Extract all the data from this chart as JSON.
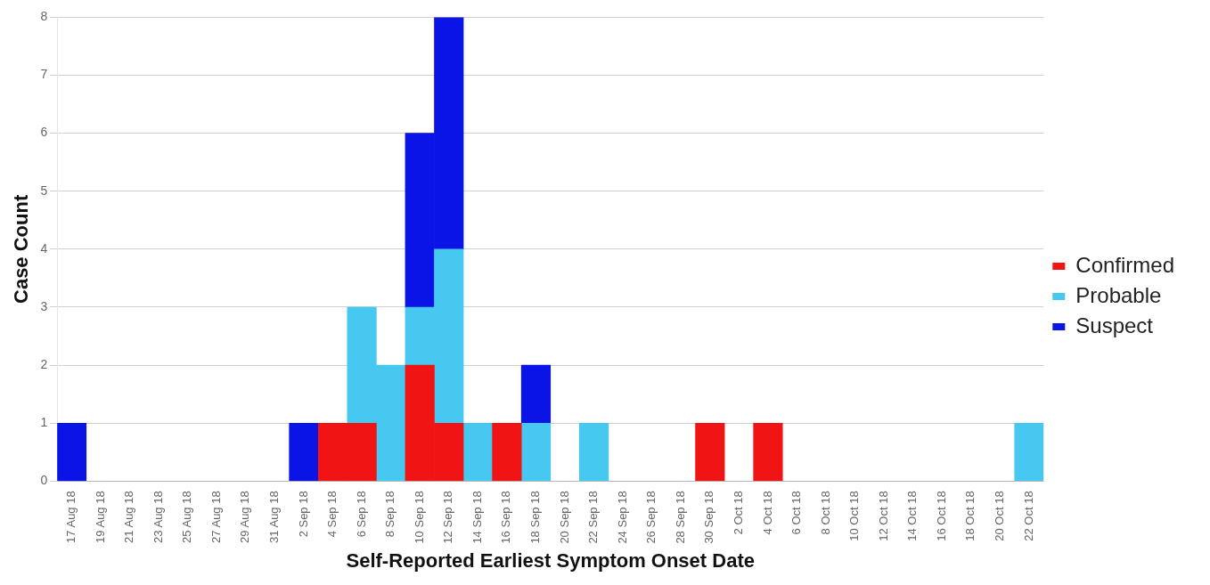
{
  "chart_data": {
    "type": "bar",
    "stacked": true,
    "xlabel": "Self-Reported Earliest Symptom Onset Date",
    "ylabel": "Case Count",
    "categories": [
      "17 Aug 18",
      "19 Aug 18",
      "21 Aug 18",
      "23 Aug 18",
      "25 Aug 18",
      "27 Aug 18",
      "29 Aug 18",
      "31 Aug 18",
      "2 Sep 18",
      "4 Sep 18",
      "6 Sep 18",
      "8 Sep 18",
      "10 Sep 18",
      "12 Sep 18",
      "14 Sep 18",
      "16 Sep 18",
      "18 Sep 18",
      "20 Sep 18",
      "22 Sep 18",
      "24 Sep 18",
      "26 Sep 18",
      "28 Sep 18",
      "30 Sep 18",
      "2 Oct 18",
      "4 Oct 18",
      "6 Oct 18",
      "8 Oct 18",
      "10 Oct 18",
      "12 Oct 18",
      "14 Oct 18",
      "16 Oct 18",
      "18 Oct 18",
      "20 Oct 18",
      "22 Oct 18"
    ],
    "series": [
      {
        "name": "Confirmed",
        "color": "#f01414",
        "values": [
          null,
          null,
          null,
          null,
          null,
          null,
          null,
          null,
          null,
          1,
          1,
          null,
          2,
          1,
          null,
          1,
          null,
          null,
          null,
          null,
          null,
          null,
          1,
          null,
          1,
          null,
          null,
          null,
          null,
          null,
          null,
          null,
          null,
          null
        ]
      },
      {
        "name": "Probable",
        "color": "#46c8f0",
        "values": [
          null,
          null,
          null,
          null,
          null,
          null,
          null,
          null,
          null,
          null,
          2,
          2,
          1,
          3,
          1,
          null,
          1,
          null,
          1,
          null,
          null,
          null,
          null,
          null,
          null,
          null,
          null,
          null,
          null,
          null,
          null,
          null,
          null,
          1
        ]
      },
      {
        "name": "Suspect",
        "color": "#0a14e6",
        "values": [
          1,
          null,
          null,
          null,
          null,
          null,
          null,
          null,
          1,
          null,
          null,
          null,
          3,
          4,
          null,
          null,
          1,
          null,
          null,
          null,
          null,
          null,
          null,
          null,
          null,
          null,
          null,
          null,
          null,
          null,
          null,
          null,
          null,
          null
        ]
      }
    ],
    "ylim": [
      0,
      8
    ],
    "yticks": [
      0,
      1,
      2,
      3,
      4,
      5,
      6,
      7,
      8
    ],
    "grid": "y",
    "legend": "right"
  }
}
